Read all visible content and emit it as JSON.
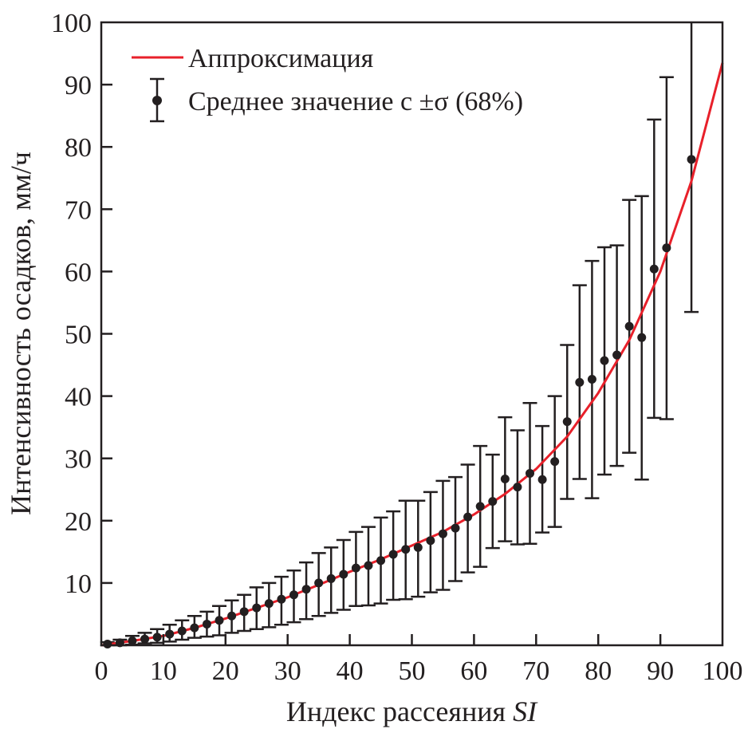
{
  "chart_data": {
    "type": "scatter",
    "xlabel": "Индекс рассеяния",
    "xlabel_italic": "SI",
    "ylabel": "Интенсивность осадков, мм/ч",
    "xlim": [
      0,
      100
    ],
    "ylim": [
      0,
      100
    ],
    "xticks": [
      "0",
      "10",
      "20",
      "30",
      "40",
      "50",
      "60",
      "70",
      "80",
      "90",
      "100"
    ],
    "yticks": [
      "10",
      "20",
      "30",
      "40",
      "50",
      "60",
      "70",
      "80",
      "90",
      "100"
    ],
    "grid": false,
    "legend_position": "top-left",
    "colors": {
      "fit": "#e8202a",
      "points": "#231f20"
    },
    "series": [
      {
        "name": "Среднее значение с ±σ (68%)",
        "type": "errorbar",
        "x": [
          1,
          3,
          5,
          7,
          9,
          11,
          13,
          15,
          17,
          19,
          21,
          23,
          25,
          27,
          29,
          31,
          33,
          35,
          37,
          39,
          41,
          43,
          45,
          47,
          49,
          51,
          53,
          55,
          57,
          59,
          61,
          63,
          65,
          67,
          69,
          71,
          73,
          75,
          77,
          79,
          81,
          83,
          85,
          87,
          89,
          91,
          95
        ],
        "y": [
          0.2,
          0.4,
          0.7,
          1.0,
          1.3,
          1.8,
          2.3,
          2.8,
          3.4,
          4.0,
          4.7,
          5.4,
          6.0,
          6.7,
          7.4,
          8.1,
          9.0,
          10.0,
          10.7,
          11.4,
          12.4,
          12.8,
          13.6,
          14.6,
          15.4,
          15.7,
          16.8,
          17.9,
          18.8,
          20.6,
          22.3,
          23.1,
          26.7,
          25.4,
          27.6,
          26.6,
          29.5,
          35.9,
          42.2,
          42.7,
          45.7,
          46.6,
          51.2,
          49.4,
          60.4,
          63.8,
          78.0
        ],
        "low": [
          0,
          0,
          0.1,
          0.3,
          0.4,
          0.6,
          0.9,
          1.2,
          1.4,
          1.6,
          2.0,
          2.3,
          2.6,
          2.9,
          3.3,
          3.7,
          4.2,
          4.7,
          5.2,
          5.7,
          6.3,
          6.4,
          6.7,
          7.3,
          7.4,
          7.8,
          8.5,
          8.9,
          10.3,
          11.7,
          12.6,
          15.6,
          16.7,
          16.2,
          16.3,
          18.1,
          19.0,
          23.5,
          26.7,
          23.6,
          27.4,
          28.8,
          30.9,
          26.6,
          36.5,
          36.3,
          53.5
        ],
        "high": [
          0.5,
          0.9,
          1.5,
          2.0,
          2.6,
          3.3,
          4.0,
          4.7,
          5.4,
          6.3,
          7.2,
          8.1,
          9.3,
          10.0,
          11.0,
          12.0,
          13.3,
          14.8,
          15.7,
          16.9,
          18.2,
          19.0,
          20.5,
          21.5,
          23.2,
          23.2,
          24.6,
          26.4,
          27.0,
          29.0,
          32.0,
          30.6,
          36.6,
          34.5,
          38.9,
          35.2,
          40.0,
          48.2,
          57.8,
          61.7,
          63.9,
          64.2,
          71.5,
          72.1,
          84.4,
          91.2,
          100
        ]
      },
      {
        "name": "Аппроксимация",
        "type": "line",
        "x": [
          0,
          5,
          10,
          15,
          20,
          25,
          30,
          35,
          40,
          45,
          50,
          55,
          60,
          65,
          70,
          75,
          80,
          85,
          90,
          95,
          100
        ],
        "y": [
          0,
          0.7,
          1.5,
          2.8,
          4.3,
          6.0,
          7.7,
          9.7,
          11.8,
          13.8,
          16.0,
          18.2,
          21.0,
          24.3,
          28.3,
          33.5,
          40.5,
          49.0,
          60.0,
          74.5,
          93.5
        ]
      }
    ]
  }
}
